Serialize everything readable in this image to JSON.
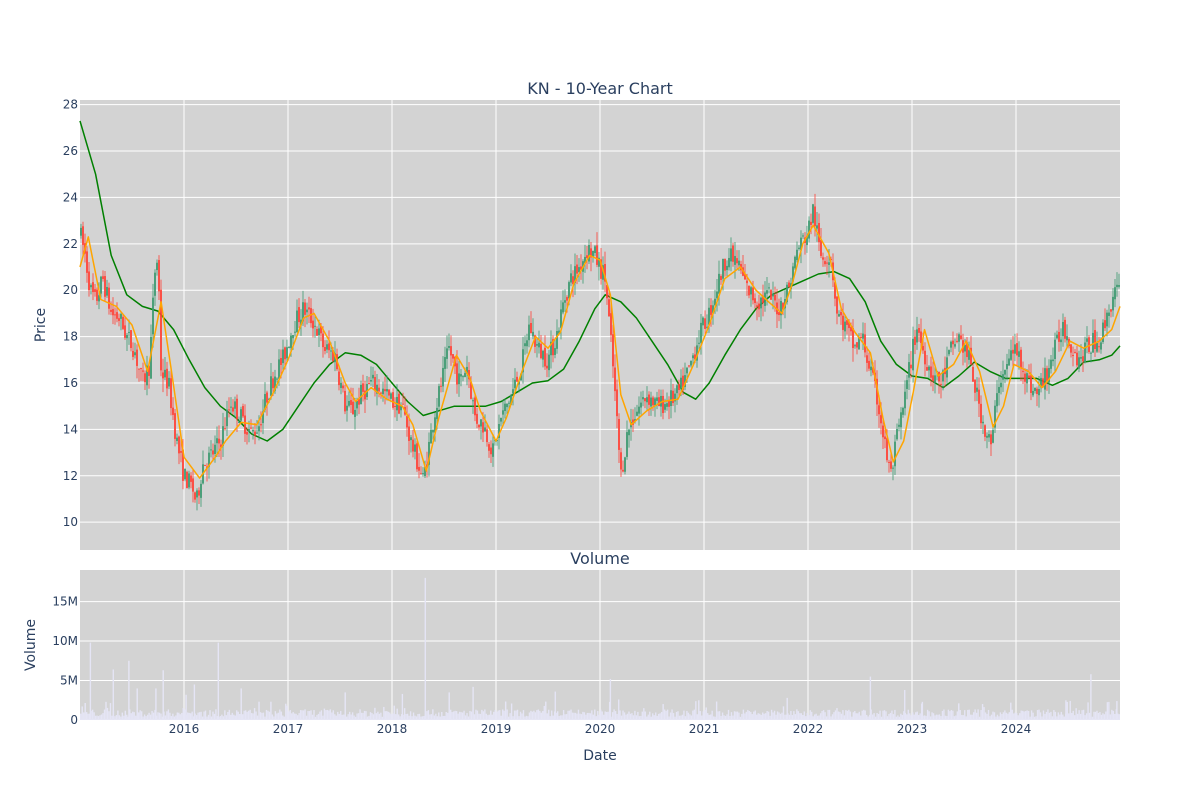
{
  "chart_data": [
    {
      "type": "candlestick",
      "title": "KN - 10-Year Chart",
      "ylabel": "Price",
      "ylim": [
        8.8,
        28.2
      ],
      "yticks": [
        10,
        12,
        14,
        16,
        18,
        20,
        22,
        24,
        26,
        28
      ],
      "xlim": [
        2015.0,
        2025.0
      ],
      "xticks": [
        2016,
        2017,
        2018,
        2019,
        2020,
        2021,
        2022,
        2023,
        2024
      ],
      "grid": true,
      "plot_background": "#d3d3d3",
      "up_color": "#3d9970",
      "down_color": "#ff4136",
      "price_path": [
        [
          2015.0,
          22.5
        ],
        [
          2015.05,
          21.5
        ],
        [
          2015.1,
          20.0
        ],
        [
          2015.15,
          19.5
        ],
        [
          2015.22,
          20.5
        ],
        [
          2015.3,
          19.0
        ],
        [
          2015.38,
          18.8
        ],
        [
          2015.45,
          18.0
        ],
        [
          2015.52,
          17.5
        ],
        [
          2015.6,
          16.0
        ],
        [
          2015.67,
          16.8
        ],
        [
          2015.72,
          20.8
        ],
        [
          2015.75,
          21.5
        ],
        [
          2015.78,
          16.5
        ],
        [
          2015.85,
          16.0
        ],
        [
          2015.93,
          13.5
        ],
        [
          2016.0,
          12.0
        ],
        [
          2016.08,
          11.5
        ],
        [
          2016.12,
          10.8
        ],
        [
          2016.18,
          12.5
        ],
        [
          2016.25,
          12.8
        ],
        [
          2016.35,
          13.5
        ],
        [
          2016.45,
          15.2
        ],
        [
          2016.55,
          14.5
        ],
        [
          2016.65,
          13.8
        ],
        [
          2016.72,
          14.2
        ],
        [
          2016.8,
          15.5
        ],
        [
          2016.88,
          16.5
        ],
        [
          2016.95,
          17.0
        ],
        [
          2017.05,
          18.5
        ],
        [
          2017.15,
          19.2
        ],
        [
          2017.25,
          18.6
        ],
        [
          2017.35,
          17.5
        ],
        [
          2017.45,
          17.2
        ],
        [
          2017.55,
          15.0
        ],
        [
          2017.62,
          14.8
        ],
        [
          2017.7,
          15.5
        ],
        [
          2017.8,
          16.0
        ],
        [
          2017.88,
          15.8
        ],
        [
          2018.0,
          15.2
        ],
        [
          2018.1,
          15.0
        ],
        [
          2018.18,
          13.5
        ],
        [
          2018.25,
          12.5
        ],
        [
          2018.3,
          11.8
        ],
        [
          2018.4,
          14.5
        ],
        [
          2018.5,
          16.5
        ],
        [
          2018.55,
          17.5
        ],
        [
          2018.65,
          16.0
        ],
        [
          2018.72,
          16.8
        ],
        [
          2018.8,
          14.5
        ],
        [
          2018.88,
          14.2
        ],
        [
          2018.97,
          13.0
        ],
        [
          2019.05,
          14.5
        ],
        [
          2019.15,
          15.5
        ],
        [
          2019.25,
          16.8
        ],
        [
          2019.32,
          18.5
        ],
        [
          2019.4,
          17.5
        ],
        [
          2019.5,
          17.0
        ],
        [
          2019.58,
          18.0
        ],
        [
          2019.65,
          19.5
        ],
        [
          2019.72,
          20.5
        ],
        [
          2019.8,
          21.0
        ],
        [
          2019.88,
          21.8
        ],
        [
          2019.95,
          21.5
        ],
        [
          2020.05,
          20.5
        ],
        [
          2020.12,
          17.0
        ],
        [
          2020.2,
          12.0
        ],
        [
          2020.27,
          14.0
        ],
        [
          2020.35,
          14.8
        ],
        [
          2020.45,
          15.5
        ],
        [
          2020.55,
          15.0
        ],
        [
          2020.65,
          15.2
        ],
        [
          2020.75,
          15.5
        ],
        [
          2020.85,
          16.5
        ],
        [
          2020.95,
          18.0
        ],
        [
          2021.05,
          19.0
        ],
        [
          2021.15,
          20.5
        ],
        [
          2021.22,
          21.5
        ],
        [
          2021.32,
          21.2
        ],
        [
          2021.42,
          20.0
        ],
        [
          2021.52,
          19.5
        ],
        [
          2021.62,
          19.8
        ],
        [
          2021.72,
          19.2
        ],
        [
          2021.82,
          20.2
        ],
        [
          2021.9,
          21.8
        ],
        [
          2022.0,
          22.5
        ],
        [
          2022.05,
          23.5
        ],
        [
          2022.12,
          21.5
        ],
        [
          2022.22,
          21.5
        ],
        [
          2022.28,
          19.0
        ],
        [
          2022.35,
          18.5
        ],
        [
          2022.45,
          17.5
        ],
        [
          2022.52,
          18.0
        ],
        [
          2022.6,
          16.5
        ],
        [
          2022.68,
          15.0
        ],
        [
          2022.75,
          13.0
        ],
        [
          2022.8,
          12.0
        ],
        [
          2022.85,
          13.5
        ],
        [
          2022.92,
          15.0
        ],
        [
          2022.97,
          16.5
        ],
        [
          2023.05,
          18.5
        ],
        [
          2023.1,
          17.5
        ],
        [
          2023.18,
          16.5
        ],
        [
          2023.28,
          16.0
        ],
        [
          2023.38,
          17.5
        ],
        [
          2023.45,
          18.0
        ],
        [
          2023.55,
          17.0
        ],
        [
          2023.62,
          15.5
        ],
        [
          2023.7,
          14.0
        ],
        [
          2023.77,
          13.2
        ],
        [
          2023.82,
          16.0
        ],
        [
          2023.9,
          16.5
        ],
        [
          2023.97,
          17.5
        ],
        [
          2024.05,
          17.0
        ],
        [
          2024.12,
          16.0
        ],
        [
          2024.2,
          15.5
        ],
        [
          2024.3,
          16.5
        ],
        [
          2024.38,
          17.5
        ],
        [
          2024.45,
          18.5
        ],
        [
          2024.52,
          17.8
        ],
        [
          2024.6,
          17.0
        ],
        [
          2024.68,
          17.5
        ],
        [
          2024.75,
          17.8
        ],
        [
          2024.82,
          18.0
        ],
        [
          2024.88,
          19.0
        ],
        [
          2024.94,
          19.8
        ],
        [
          2025.0,
          20.0
        ]
      ],
      "ma_short": {
        "color": "#ffa500",
        "points": [
          [
            2015.0,
            21.0
          ],
          [
            2015.08,
            22.3
          ],
          [
            2015.2,
            19.6
          ],
          [
            2015.35,
            19.3
          ],
          [
            2015.5,
            18.5
          ],
          [
            2015.65,
            16.5
          ],
          [
            2015.78,
            19.5
          ],
          [
            2015.88,
            16.5
          ],
          [
            2016.0,
            12.8
          ],
          [
            2016.15,
            11.9
          ],
          [
            2016.3,
            12.8
          ],
          [
            2016.4,
            13.5
          ],
          [
            2016.55,
            14.3
          ],
          [
            2016.7,
            14.2
          ],
          [
            2016.85,
            15.5
          ],
          [
            2017.0,
            17.0
          ],
          [
            2017.15,
            18.8
          ],
          [
            2017.25,
            19.0
          ],
          [
            2017.4,
            17.8
          ],
          [
            2017.55,
            16.0
          ],
          [
            2017.65,
            15.2
          ],
          [
            2017.8,
            15.8
          ],
          [
            2017.95,
            15.3
          ],
          [
            2018.1,
            15.0
          ],
          [
            2018.2,
            14.2
          ],
          [
            2018.33,
            12.2
          ],
          [
            2018.45,
            14.5
          ],
          [
            2018.62,
            17.2
          ],
          [
            2018.75,
            16.2
          ],
          [
            2018.85,
            14.8
          ],
          [
            2019.0,
            13.5
          ],
          [
            2019.1,
            14.5
          ],
          [
            2019.25,
            16.5
          ],
          [
            2019.38,
            18.0
          ],
          [
            2019.5,
            17.5
          ],
          [
            2019.62,
            18.2
          ],
          [
            2019.75,
            20.3
          ],
          [
            2019.9,
            21.5
          ],
          [
            2020.0,
            21.3
          ],
          [
            2020.1,
            19.8
          ],
          [
            2020.2,
            15.5
          ],
          [
            2020.3,
            14.2
          ],
          [
            2020.45,
            14.8
          ],
          [
            2020.6,
            15.2
          ],
          [
            2020.75,
            15.3
          ],
          [
            2020.9,
            16.8
          ],
          [
            2021.05,
            18.5
          ],
          [
            2021.2,
            20.5
          ],
          [
            2021.35,
            21.0
          ],
          [
            2021.5,
            20.0
          ],
          [
            2021.62,
            19.5
          ],
          [
            2021.75,
            19.0
          ],
          [
            2021.85,
            20.3
          ],
          [
            2021.95,
            22.0
          ],
          [
            2022.05,
            22.8
          ],
          [
            2022.2,
            21.6
          ],
          [
            2022.32,
            19.2
          ],
          [
            2022.45,
            18.2
          ],
          [
            2022.6,
            17.3
          ],
          [
            2022.72,
            14.5
          ],
          [
            2022.82,
            12.6
          ],
          [
            2022.92,
            13.5
          ],
          [
            2023.02,
            15.8
          ],
          [
            2023.12,
            18.3
          ],
          [
            2023.25,
            16.3
          ],
          [
            2023.4,
            16.8
          ],
          [
            2023.52,
            17.8
          ],
          [
            2023.65,
            16.5
          ],
          [
            2023.78,
            14.1
          ],
          [
            2023.88,
            15.0
          ],
          [
            2023.98,
            16.8
          ],
          [
            2024.12,
            16.5
          ],
          [
            2024.25,
            15.8
          ],
          [
            2024.38,
            16.5
          ],
          [
            2024.52,
            17.8
          ],
          [
            2024.65,
            17.5
          ],
          [
            2024.8,
            17.8
          ],
          [
            2024.92,
            18.3
          ],
          [
            2025.0,
            19.3
          ]
        ]
      },
      "ma_long": {
        "color": "#008000",
        "points": [
          [
            2015.0,
            27.3
          ],
          [
            2015.15,
            25.0
          ],
          [
            2015.3,
            21.5
          ],
          [
            2015.45,
            19.8
          ],
          [
            2015.6,
            19.3
          ],
          [
            2015.75,
            19.1
          ],
          [
            2015.9,
            18.3
          ],
          [
            2016.05,
            17.0
          ],
          [
            2016.2,
            15.8
          ],
          [
            2016.35,
            15.0
          ],
          [
            2016.5,
            14.5
          ],
          [
            2016.65,
            13.8
          ],
          [
            2016.8,
            13.5
          ],
          [
            2016.95,
            14.0
          ],
          [
            2017.1,
            15.0
          ],
          [
            2017.25,
            16.0
          ],
          [
            2017.4,
            16.8
          ],
          [
            2017.55,
            17.3
          ],
          [
            2017.7,
            17.2
          ],
          [
            2017.85,
            16.8
          ],
          [
            2018.0,
            16.0
          ],
          [
            2018.15,
            15.2
          ],
          [
            2018.3,
            14.6
          ],
          [
            2018.45,
            14.8
          ],
          [
            2018.6,
            15.0
          ],
          [
            2018.75,
            15.0
          ],
          [
            2018.9,
            15.0
          ],
          [
            2019.05,
            15.2
          ],
          [
            2019.2,
            15.6
          ],
          [
            2019.35,
            16.0
          ],
          [
            2019.5,
            16.1
          ],
          [
            2019.65,
            16.6
          ],
          [
            2019.8,
            17.8
          ],
          [
            2019.95,
            19.2
          ],
          [
            2020.05,
            19.8
          ],
          [
            2020.2,
            19.5
          ],
          [
            2020.35,
            18.8
          ],
          [
            2020.5,
            17.8
          ],
          [
            2020.65,
            16.8
          ],
          [
            2020.8,
            15.6
          ],
          [
            2020.92,
            15.3
          ],
          [
            2021.05,
            16.0
          ],
          [
            2021.2,
            17.2
          ],
          [
            2021.35,
            18.3
          ],
          [
            2021.5,
            19.2
          ],
          [
            2021.65,
            19.8
          ],
          [
            2021.8,
            20.1
          ],
          [
            2021.95,
            20.4
          ],
          [
            2022.1,
            20.7
          ],
          [
            2022.25,
            20.8
          ],
          [
            2022.4,
            20.5
          ],
          [
            2022.55,
            19.5
          ],
          [
            2022.7,
            17.8
          ],
          [
            2022.85,
            16.8
          ],
          [
            2023.0,
            16.3
          ],
          [
            2023.15,
            16.2
          ],
          [
            2023.3,
            15.8
          ],
          [
            2023.45,
            16.3
          ],
          [
            2023.6,
            16.9
          ],
          [
            2023.75,
            16.5
          ],
          [
            2023.9,
            16.2
          ],
          [
            2024.05,
            16.2
          ],
          [
            2024.2,
            16.2
          ],
          [
            2024.35,
            15.9
          ],
          [
            2024.5,
            16.2
          ],
          [
            2024.65,
            16.9
          ],
          [
            2024.8,
            17.0
          ],
          [
            2024.92,
            17.2
          ],
          [
            2025.0,
            17.6
          ]
        ]
      }
    },
    {
      "type": "bar",
      "title": "Volume",
      "xlabel": "Date",
      "ylabel": "Volume",
      "ylim": [
        0,
        19000000
      ],
      "yticks": [
        0,
        5000000,
        10000000,
        15000000
      ],
      "ytick_labels": [
        "0",
        "5M",
        "10M",
        "15M"
      ],
      "xlim": [
        2015.0,
        2025.0
      ],
      "xticks": [
        2016,
        2017,
        2018,
        2019,
        2020,
        2021,
        2022,
        2023,
        2024
      ],
      "grid": true,
      "plot_background": "#d3d3d3",
      "bar_color": "#e5e5f5",
      "baseline": 800000,
      "spikes": [
        [
          2015.1,
          9800000
        ],
        [
          2015.32,
          6400000
        ],
        [
          2015.47,
          7500000
        ],
        [
          2015.55,
          4000000
        ],
        [
          2015.73,
          4000000
        ],
        [
          2015.8,
          6300000
        ],
        [
          2016.02,
          3200000
        ],
        [
          2016.1,
          4500000
        ],
        [
          2016.33,
          9800000
        ],
        [
          2016.55,
          4000000
        ],
        [
          2017.55,
          3500000
        ],
        [
          2018.1,
          3300000
        ],
        [
          2018.32,
          18000000
        ],
        [
          2018.55,
          3500000
        ],
        [
          2018.78,
          4200000
        ],
        [
          2019.57,
          3600000
        ],
        [
          2020.1,
          5200000
        ],
        [
          2020.18,
          2600000
        ],
        [
          2020.95,
          2500000
        ],
        [
          2021.8,
          2800000
        ],
        [
          2022.6,
          5500000
        ],
        [
          2022.93,
          3800000
        ],
        [
          2023.1,
          2300000
        ],
        [
          2023.45,
          2000000
        ],
        [
          2023.95,
          2200000
        ],
        [
          2024.48,
          2500000
        ],
        [
          2024.72,
          5800000
        ],
        [
          2024.97,
          2400000
        ]
      ]
    }
  ],
  "xaxis_labels": [
    "2016",
    "2017",
    "2018",
    "2019",
    "2020",
    "2021",
    "2022",
    "2023",
    "2024"
  ],
  "price_ytick_labels": [
    "10",
    "12",
    "14",
    "16",
    "18",
    "20",
    "22",
    "24",
    "26",
    "28"
  ]
}
